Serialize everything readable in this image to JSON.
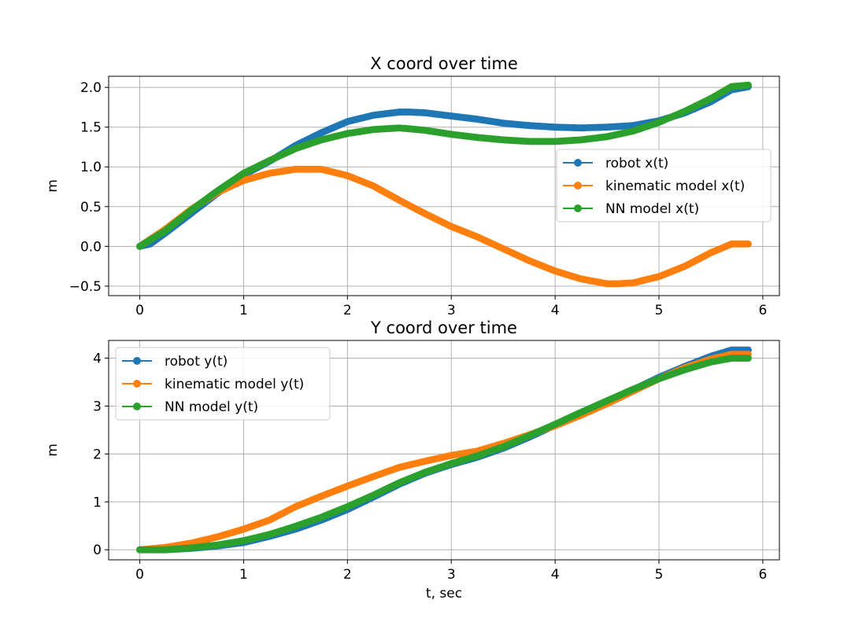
{
  "chart_data": [
    {
      "type": "line",
      "title": "X coord over time",
      "xlabel": "",
      "ylabel": "m",
      "xlim": [
        -0.3,
        6.16
      ],
      "ylim": [
        -0.62,
        2.14
      ],
      "xticks": [
        0,
        1,
        2,
        3,
        4,
        5,
        6
      ],
      "yticks": [
        -0.5,
        0.0,
        0.5,
        1.0,
        1.5,
        2.0
      ],
      "ytick_labels": [
        "−0.5",
        "0.0",
        "0.5",
        "1.0",
        "1.5",
        "2.0"
      ],
      "grid": true,
      "legend_position": "center-right",
      "t_end": 5.87,
      "series": [
        {
          "name": "robot x(t)",
          "color": "#1f77b4",
          "x": [
            0,
            0.1,
            0.25,
            0.5,
            0.75,
            1.0,
            1.25,
            1.5,
            1.75,
            2.0,
            2.25,
            2.5,
            2.6,
            2.75,
            3.0,
            3.25,
            3.5,
            3.75,
            4.0,
            4.25,
            4.5,
            4.75,
            5.0,
            5.25,
            5.5,
            5.7,
            5.87
          ],
          "y": [
            0.0,
            0.03,
            0.17,
            0.42,
            0.67,
            0.9,
            1.07,
            1.27,
            1.43,
            1.57,
            1.65,
            1.69,
            1.69,
            1.68,
            1.64,
            1.6,
            1.55,
            1.52,
            1.5,
            1.49,
            1.5,
            1.52,
            1.58,
            1.68,
            1.82,
            1.97,
            2.01
          ]
        },
        {
          "name": "kinematic model x(t)",
          "color": "#ff7f0e",
          "x": [
            0,
            0.25,
            0.5,
            0.75,
            1.0,
            1.25,
            1.5,
            1.75,
            2.0,
            2.25,
            2.5,
            2.75,
            3.0,
            3.25,
            3.5,
            3.75,
            4.0,
            4.25,
            4.5,
            4.6,
            4.75,
            5.0,
            5.25,
            5.5,
            5.7,
            5.87
          ],
          "y": [
            0.0,
            0.22,
            0.47,
            0.68,
            0.83,
            0.92,
            0.97,
            0.97,
            0.89,
            0.76,
            0.58,
            0.41,
            0.25,
            0.12,
            -0.03,
            -0.18,
            -0.31,
            -0.41,
            -0.47,
            -0.47,
            -0.46,
            -0.38,
            -0.25,
            -0.08,
            0.03,
            0.03
          ]
        },
        {
          "name": "NN model x(t)",
          "color": "#2ca02c",
          "x": [
            0,
            0.25,
            0.5,
            0.75,
            1.0,
            1.25,
            1.5,
            1.75,
            2.0,
            2.25,
            2.5,
            2.75,
            3.0,
            3.25,
            3.5,
            3.75,
            4.0,
            4.25,
            4.5,
            4.75,
            5.0,
            5.25,
            5.5,
            5.7,
            5.87
          ],
          "y": [
            0.0,
            0.2,
            0.46,
            0.7,
            0.92,
            1.08,
            1.23,
            1.34,
            1.42,
            1.47,
            1.49,
            1.46,
            1.41,
            1.37,
            1.34,
            1.32,
            1.32,
            1.34,
            1.38,
            1.45,
            1.56,
            1.7,
            1.86,
            2.01,
            2.03
          ]
        }
      ]
    },
    {
      "type": "line",
      "title": "Y coord over time",
      "xlabel": "t, sec",
      "ylabel": "m",
      "xlim": [
        -0.3,
        6.16
      ],
      "ylim": [
        -0.21,
        4.37
      ],
      "xticks": [
        0,
        1,
        2,
        3,
        4,
        5,
        6
      ],
      "yticks": [
        0,
        1,
        2,
        3,
        4
      ],
      "grid": true,
      "legend_position": "upper-left",
      "t_end": 5.87,
      "series": [
        {
          "name": "robot y(t)",
          "color": "#1f77b4",
          "x": [
            0,
            0.25,
            0.5,
            0.75,
            1.0,
            1.25,
            1.5,
            1.75,
            2.0,
            2.25,
            2.5,
            2.75,
            3.0,
            3.25,
            3.5,
            3.75,
            4.0,
            4.25,
            4.5,
            4.75,
            5.0,
            5.25,
            5.5,
            5.7,
            5.87
          ],
          "y": [
            0.0,
            0.0,
            0.03,
            0.08,
            0.15,
            0.28,
            0.43,
            0.62,
            0.84,
            1.1,
            1.37,
            1.6,
            1.78,
            1.93,
            2.12,
            2.35,
            2.6,
            2.84,
            3.09,
            3.34,
            3.6,
            3.83,
            4.04,
            4.17,
            4.17
          ]
        },
        {
          "name": "kinematic model y(t)",
          "color": "#ff7f0e",
          "x": [
            0,
            0.25,
            0.5,
            0.75,
            1.0,
            1.25,
            1.5,
            1.75,
            2.0,
            2.25,
            2.5,
            2.75,
            3.0,
            3.25,
            3.5,
            3.75,
            4.0,
            4.25,
            4.5,
            4.75,
            5.0,
            5.25,
            5.5,
            5.7,
            5.87
          ],
          "y": [
            0.0,
            0.05,
            0.14,
            0.27,
            0.43,
            0.62,
            0.9,
            1.12,
            1.33,
            1.53,
            1.72,
            1.85,
            1.97,
            2.06,
            2.22,
            2.4,
            2.59,
            2.81,
            3.05,
            3.31,
            3.57,
            3.8,
            3.98,
            4.08,
            4.08
          ]
        },
        {
          "name": "NN model y(t)",
          "color": "#2ca02c",
          "x": [
            0,
            0.25,
            0.5,
            0.75,
            1.0,
            1.25,
            1.5,
            1.75,
            2.0,
            2.25,
            2.5,
            2.75,
            3.0,
            3.25,
            3.5,
            3.75,
            4.0,
            4.25,
            4.5,
            4.75,
            5.0,
            5.25,
            5.5,
            5.7,
            5.87
          ],
          "y": [
            0.0,
            0.0,
            0.04,
            0.1,
            0.19,
            0.32,
            0.49,
            0.68,
            0.9,
            1.14,
            1.4,
            1.62,
            1.8,
            1.96,
            2.15,
            2.38,
            2.62,
            2.87,
            3.11,
            3.35,
            3.57,
            3.76,
            3.92,
            4.0,
            4.0
          ]
        }
      ]
    }
  ]
}
